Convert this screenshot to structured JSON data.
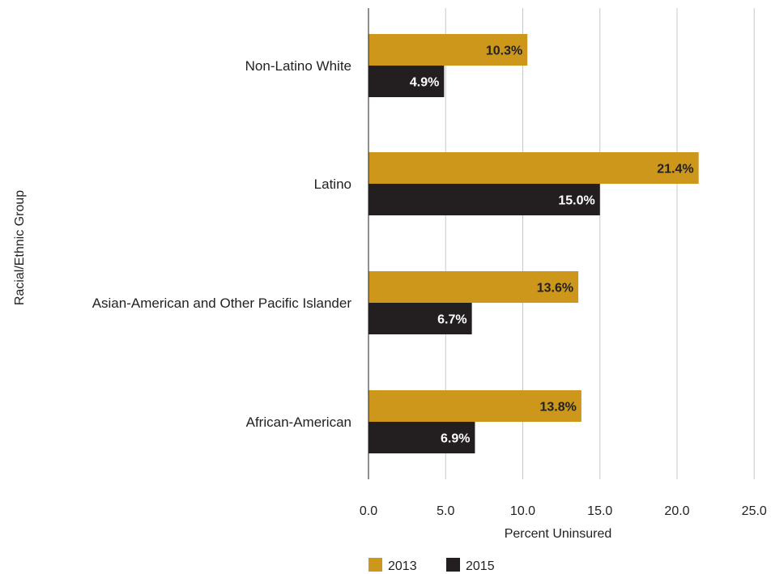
{
  "chart_data": {
    "type": "bar",
    "orientation": "horizontal",
    "categories": [
      "Non-Latino White",
      "Latino",
      "Asian-American and Other Pacific Islander",
      "African-American"
    ],
    "series": [
      {
        "name": "2013",
        "values": [
          10.3,
          21.4,
          13.6,
          13.8
        ],
        "labels": [
          "10.3%",
          "21.4%",
          "13.6%",
          "13.8%"
        ],
        "color": "#CC971A",
        "label_color": "#222222"
      },
      {
        "name": "2015",
        "values": [
          4.9,
          15.0,
          6.7,
          6.9
        ],
        "labels": [
          "4.9%",
          "15.0%",
          "6.7%",
          "6.9%"
        ],
        "color": "#231F20",
        "label_color": "#ffffff"
      }
    ],
    "xlabel": "Percent Uninsured",
    "ylabel": "Racial/Ethnic Group",
    "xlim": [
      0,
      25
    ],
    "xticks": [
      "0.0",
      "5.0",
      "10.0",
      "15.0",
      "20.0",
      "25.0"
    ],
    "grid": "vertical",
    "legend_position": "bottom"
  }
}
